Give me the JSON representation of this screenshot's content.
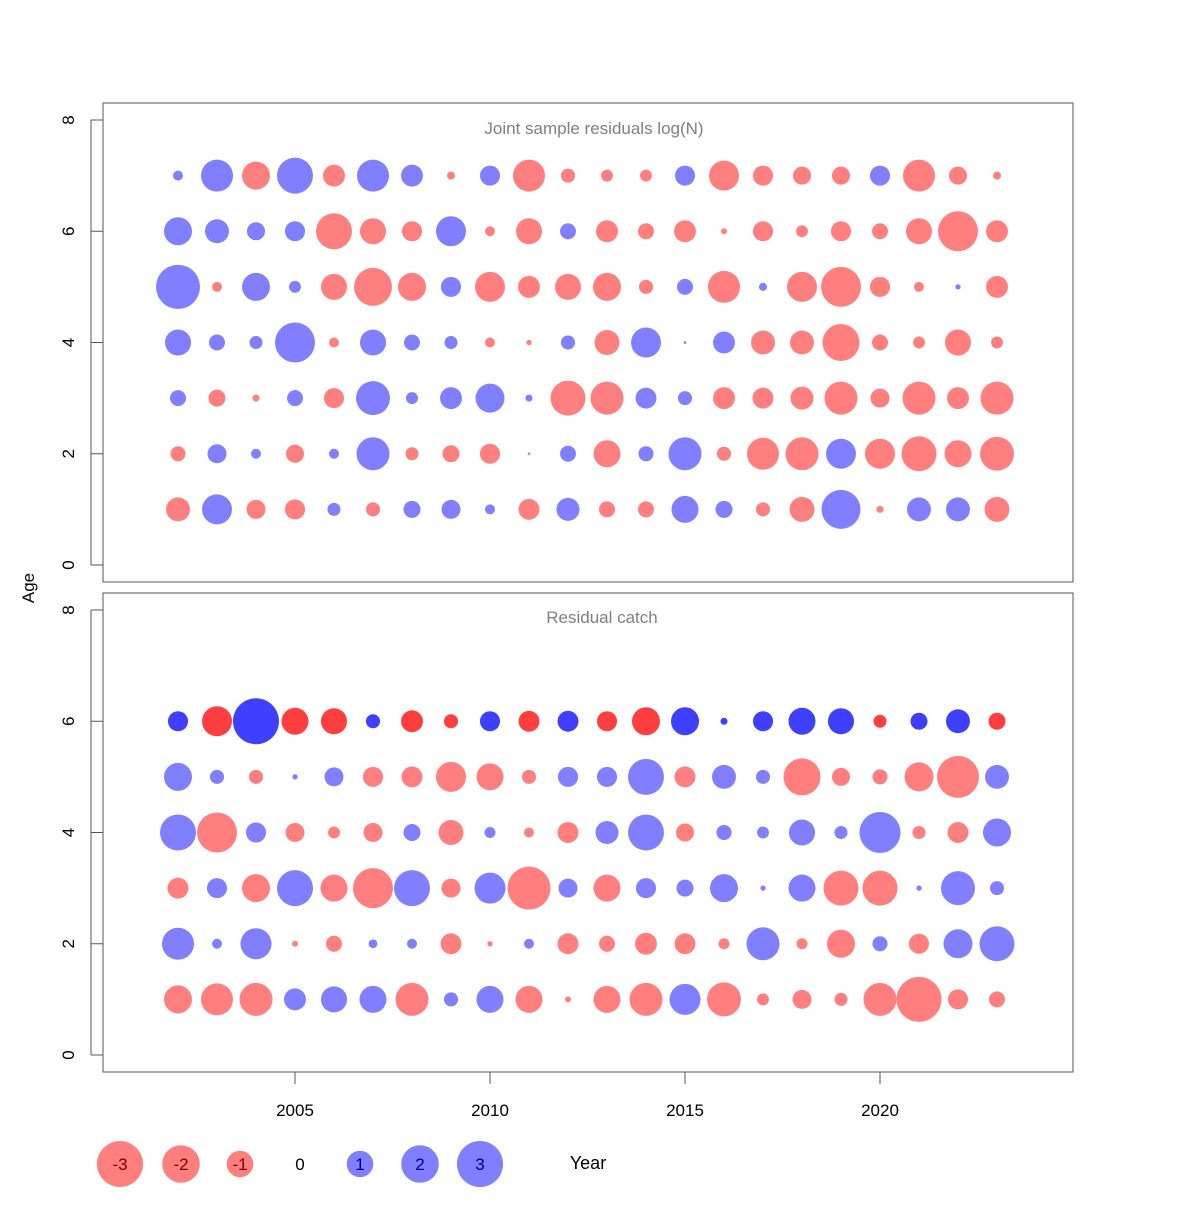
{
  "chart_data": {
    "type": "scatter",
    "subtype": "bubble",
    "xlabel": "Year",
    "ylabel": "Age",
    "x": [
      2002,
      2003,
      2004,
      2005,
      2006,
      2007,
      2008,
      2009,
      2010,
      2011,
      2012,
      2013,
      2014,
      2015,
      2016,
      2017,
      2018,
      2019,
      2020,
      2021,
      2022,
      2023
    ],
    "x_ticks": [
      "2005",
      "2010",
      "2015",
      "2020"
    ],
    "x_tick_values": [
      2005,
      2010,
      2015,
      2020
    ],
    "xlim": [
      2000.5,
      2024.8
    ],
    "colors": {
      "positive": "#7f7fff",
      "negative": "#ff7f7f",
      "positive_strong": "#3f3fff",
      "negative_strong": "#ff3f3f"
    },
    "legend": {
      "placement": "bottom-left",
      "values": [
        -3,
        -2,
        -1,
        0,
        1,
        2,
        3
      ],
      "labels": [
        "-3",
        "-2",
        "-1",
        "0",
        "1",
        "2",
        "3"
      ]
    },
    "panels": [
      {
        "title": "Joint sample residuals log(N)",
        "ylim": [
          0,
          8
        ],
        "y_ticks": [
          "0",
          "2",
          "4",
          "6",
          "8"
        ],
        "y_tick_values": [
          0,
          2,
          4,
          6,
          8
        ],
        "series": [
          {
            "age": 7,
            "values": [
              0.14,
              1.45,
              -1.11,
              1.83,
              -0.68,
              1.45,
              0.68,
              -0.09,
              0.57,
              -1.45,
              -0.28,
              -0.2,
              -0.2,
              0.57,
              -1.27,
              -0.57,
              -0.46,
              -0.46,
              0.57,
              -1.45,
              -0.46,
              -0.09
            ]
          },
          {
            "age": 6,
            "values": [
              1.11,
              0.81,
              0.46,
              0.57,
              -1.83,
              -0.96,
              -0.57,
              1.27,
              -0.14,
              -0.96,
              0.36,
              -0.68,
              -0.36,
              -0.68,
              -0.05,
              -0.57,
              -0.2,
              -0.57,
              -0.36,
              -0.96,
              -2.26,
              -0.68
            ]
          },
          {
            "age": 5,
            "values": [
              2.74,
              -0.14,
              1.11,
              0.2,
              -0.96,
              -2.04,
              -1.11,
              0.57,
              -1.27,
              -0.68,
              -0.96,
              -1.11,
              -0.28,
              0.36,
              -1.45,
              0.09,
              -1.27,
              -2.26,
              -0.57,
              -0.14,
              0.04,
              -0.68
            ]
          },
          {
            "age": 4,
            "values": [
              0.96,
              0.36,
              0.24,
              2.26,
              -0.14,
              0.96,
              0.36,
              0.24,
              -0.14,
              -0.04,
              0.28,
              -0.88,
              1.27,
              0.01,
              0.68,
              -0.81,
              -0.81,
              -1.93,
              -0.36,
              -0.2,
              -0.96,
              -0.2
            ]
          },
          {
            "age": 3,
            "values": [
              0.36,
              -0.41,
              -0.07,
              0.36,
              -0.57,
              1.63,
              0.2,
              0.68,
              1.19,
              0.07,
              -1.73,
              -1.54,
              0.62,
              0.28,
              -0.68,
              -0.62,
              -0.75,
              -1.54,
              -0.51,
              -1.54,
              -0.68,
              -1.54
            ]
          },
          {
            "age": 2,
            "values": [
              -0.32,
              0.51,
              0.14,
              -0.46,
              0.14,
              1.54,
              -0.24,
              -0.41,
              -0.57,
              -0.01,
              0.36,
              -1.03,
              0.32,
              1.54,
              -0.28,
              -1.45,
              -1.54,
              1.27,
              -1.27,
              -1.73,
              -1.03,
              -1.63
            ]
          },
          {
            "age": 1,
            "values": [
              -0.81,
              1.27,
              -0.51,
              -0.57,
              0.24,
              -0.28,
              0.41,
              0.51,
              0.14,
              -0.62,
              0.75,
              -0.36,
              -0.36,
              1.03,
              0.41,
              -0.28,
              -0.88,
              2.15,
              -0.07,
              0.81,
              0.81,
              -0.88
            ]
          }
        ]
      },
      {
        "title": "Residual catch",
        "ylim": [
          0,
          8
        ],
        "y_ticks": [
          "0",
          "2",
          "4",
          "6",
          "8"
        ],
        "y_tick_values": [
          0,
          2,
          4,
          6,
          8
        ],
        "strong_age": 6,
        "series": [
          {
            "age": 6,
            "values": [
              0.57,
              -1.27,
              2.99,
              -1.03,
              -0.96,
              0.28,
              -0.68,
              -0.28,
              0.57,
              -0.62,
              0.62,
              -0.57,
              -1.11,
              1.11,
              0.07,
              0.57,
              1.03,
              0.96,
              -0.24,
              0.41,
              0.81,
              -0.41
            ]
          },
          {
            "age": 5,
            "values": [
              1.11,
              0.28,
              -0.28,
              0.04,
              0.51,
              -0.57,
              -0.62,
              -1.27,
              -1.03,
              -0.28,
              0.57,
              0.57,
              1.83,
              -0.62,
              0.81,
              0.28,
              -1.93,
              -0.46,
              -0.32,
              -1.19,
              -2.49,
              0.81
            ]
          },
          {
            "age": 4,
            "values": [
              1.83,
              -2.26,
              0.57,
              -0.51,
              -0.2,
              -0.51,
              0.41,
              -0.88,
              0.17,
              -0.14,
              -0.62,
              0.75,
              1.83,
              -0.46,
              0.32,
              0.2,
              0.96,
              0.24,
              2.38,
              -0.24,
              -0.62,
              1.11
            ]
          },
          {
            "age": 3,
            "values": [
              -0.62,
              0.57,
              -1.11,
              1.83,
              -1.03,
              -2.26,
              1.83,
              -0.51,
              1.36,
              -2.61,
              0.51,
              -1.03,
              0.57,
              0.41,
              1.11,
              0.04,
              1.03,
              -1.73,
              -1.73,
              0.04,
              1.63,
              0.28
            ]
          },
          {
            "age": 2,
            "values": [
              1.45,
              0.14,
              1.36,
              -0.05,
              -0.36,
              0.11,
              0.14,
              -0.62,
              -0.04,
              0.14,
              -0.62,
              -0.36,
              -0.68,
              -0.62,
              -0.17,
              1.54,
              -0.17,
              -1.11,
              0.32,
              -0.57,
              1.19,
              1.73
            ]
          },
          {
            "age": 1,
            "values": [
              -1.11,
              -1.45,
              -1.54,
              0.68,
              0.96,
              1.03,
              -1.54,
              0.28,
              1.03,
              -1.03,
              -0.05,
              -1.03,
              -1.54,
              1.36,
              -1.63,
              -0.2,
              -0.51,
              -0.24,
              -1.54,
              -2.86,
              -0.57,
              -0.36
            ]
          }
        ]
      }
    ]
  }
}
